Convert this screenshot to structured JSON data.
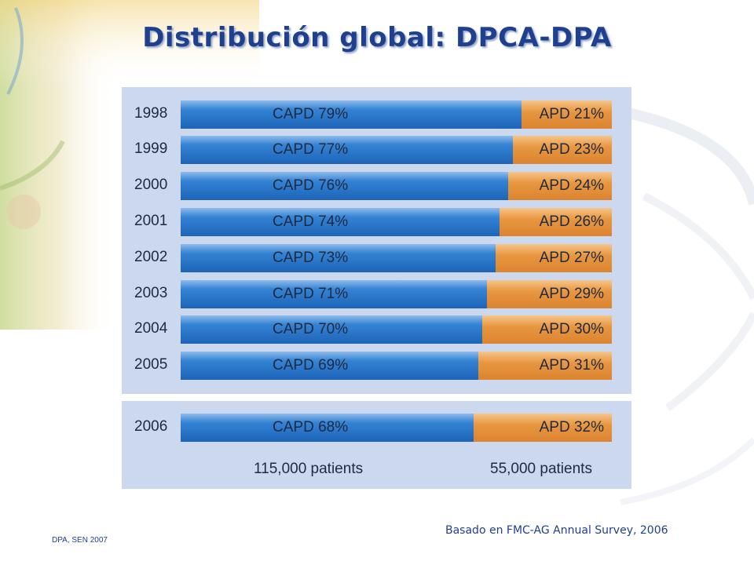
{
  "slide": {
    "title": "Distribución global: DPCA-DPA",
    "source": "Basado en FMC-AG Annual Survey, 2006",
    "footer": "DPA, SEN 2007"
  },
  "colors": {
    "capd": "#2a72c8",
    "apd": "#e8963f",
    "panel": "#ccd8ee",
    "title": "#1f3f8f"
  },
  "chart_data": {
    "type": "bar",
    "orientation": "horizontal",
    "stacked": true,
    "normalized": true,
    "categories": [
      "1998",
      "1999",
      "2000",
      "2001",
      "2002",
      "2003",
      "2004",
      "2005",
      "2006"
    ],
    "series": [
      {
        "name": "CAPD",
        "values": [
          79,
          77,
          76,
          74,
          73,
          71,
          70,
          69,
          68
        ],
        "labels": [
          "CAPD 79%",
          "CAPD 77%",
          "CAPD 76%",
          "CAPD 74%",
          "CAPD 73%",
          "CAPD 71%",
          "CAPD 70%",
          "CAPD 69%",
          "CAPD 68%"
        ]
      },
      {
        "name": "APD",
        "values": [
          21,
          23,
          24,
          26,
          27,
          29,
          30,
          31,
          32
        ],
        "labels": [
          "APD 21%",
          "APD 23%",
          "APD 24%",
          "APD 26%",
          "APD 27%",
          "APD 29%",
          "APD 30%",
          "APD 31%",
          "APD 32%"
        ]
      }
    ],
    "annotations": {
      "capd_patients": "115,000 patients",
      "apd_patients": "55,000 patients"
    }
  }
}
